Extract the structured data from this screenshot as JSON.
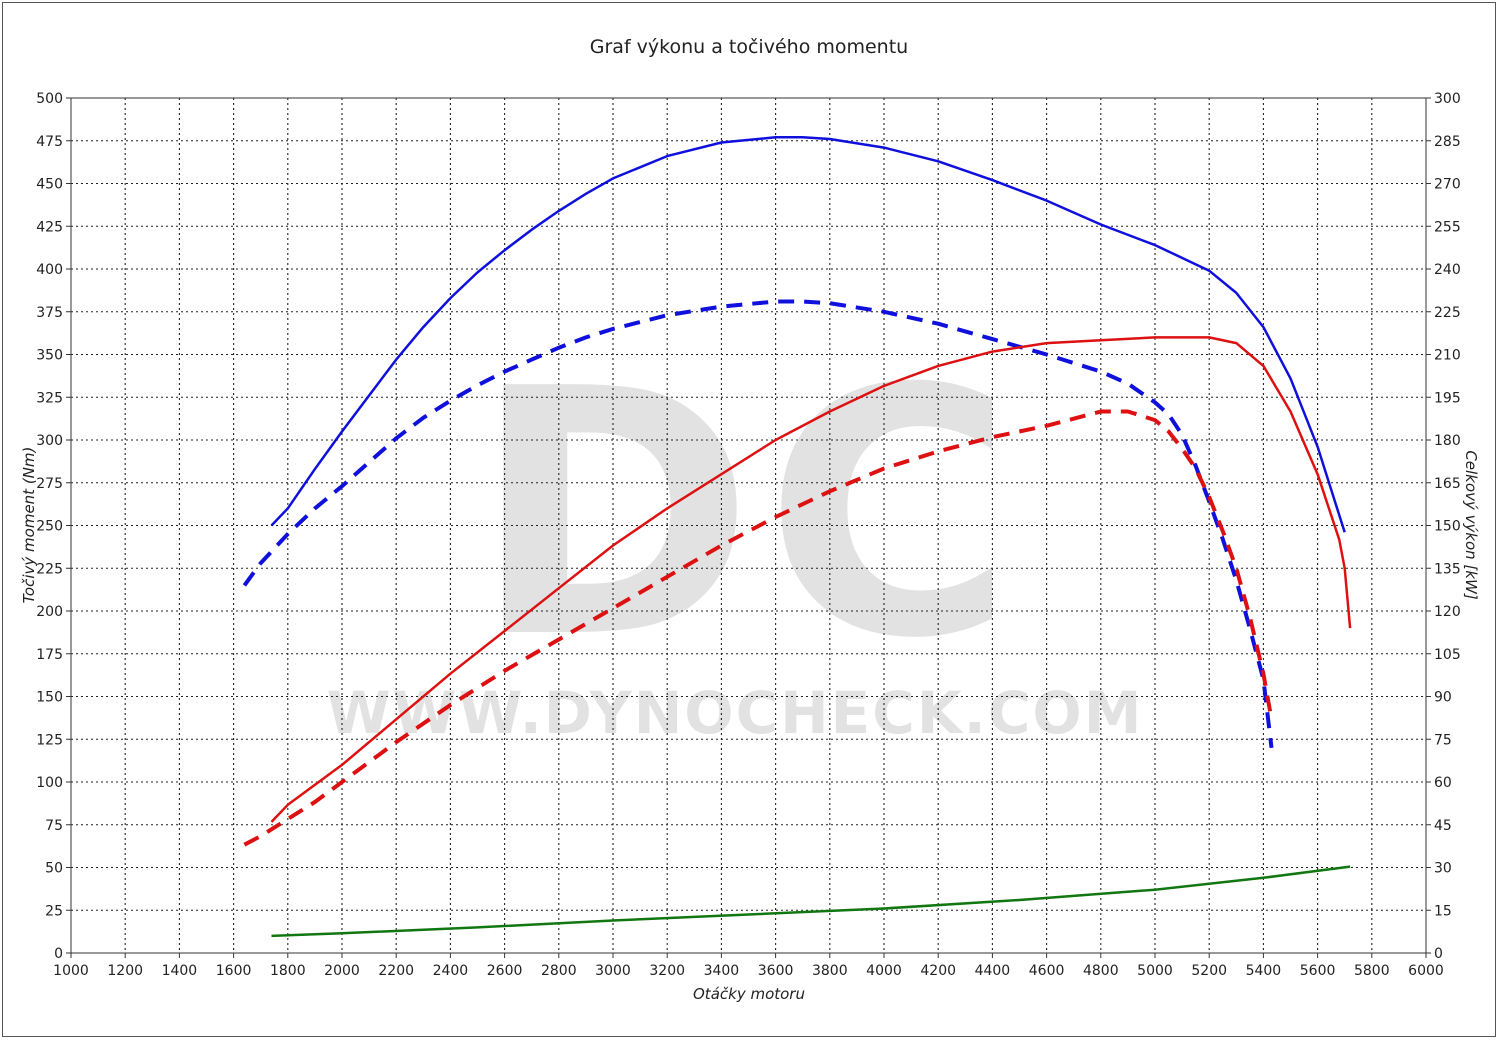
{
  "chart_data": {
    "type": "line",
    "title": "Graf výkonu a točivého momentu",
    "xlabel": "Otáčky motoru",
    "ylabel_left": "Točivý moment (Nm)",
    "ylabel_right": "Celkový výkon [kW]",
    "xlim": [
      1000,
      6000
    ],
    "ylim_left": [
      0,
      500
    ],
    "ylim_right": [
      0,
      300
    ],
    "x_ticks": [
      1000,
      1200,
      1400,
      1600,
      1800,
      2000,
      2200,
      2400,
      2600,
      2800,
      3000,
      3200,
      3400,
      3600,
      3800,
      4000,
      4200,
      4400,
      4600,
      4800,
      5000,
      5200,
      5400,
      5600,
      5800,
      6000
    ],
    "y_left_ticks": [
      0,
      25,
      50,
      75,
      100,
      125,
      150,
      175,
      200,
      225,
      250,
      275,
      300,
      325,
      350,
      375,
      400,
      425,
      450,
      475,
      500
    ],
    "y_right_ticks": [
      0,
      15,
      30,
      45,
      60,
      75,
      90,
      105,
      120,
      135,
      150,
      165,
      180,
      195,
      210,
      225,
      240,
      255,
      270,
      285,
      300
    ],
    "grid": true,
    "watermark": {
      "logo": "DC",
      "url": "WWW.DYNOCHECK.COM"
    },
    "series": [
      {
        "axis": "left",
        "color": "#1010dd",
        "dash": false,
        "x": [
          1740,
          1800,
          1900,
          2000,
          2100,
          2200,
          2300,
          2400,
          2500,
          2600,
          2700,
          2800,
          2900,
          3000,
          3200,
          3400,
          3600,
          3700,
          3800,
          4000,
          4200,
          4400,
          4600,
          4800,
          5000,
          5200,
          5300,
          5400,
          5500,
          5600,
          5700
        ],
        "values": [
          250,
          260,
          283,
          305,
          326,
          347,
          366,
          383,
          398,
          411,
          423,
          434,
          444,
          453,
          466,
          474,
          477,
          477,
          476,
          471,
          463,
          452,
          440,
          426,
          414,
          399,
          386,
          366,
          336,
          296,
          246
        ]
      },
      {
        "axis": "left",
        "color": "#1010dd",
        "dash": true,
        "x": [
          1640,
          1700,
          1800,
          1900,
          2000,
          2100,
          2200,
          2300,
          2400,
          2500,
          2600,
          2700,
          2800,
          2900,
          3000,
          3200,
          3400,
          3600,
          3700,
          3800,
          4000,
          4200,
          4400,
          4600,
          4800,
          4900,
          5000,
          5050,
          5100,
          5150,
          5200,
          5250,
          5300,
          5350,
          5400,
          5430
        ],
        "values": [
          215,
          228,
          245,
          260,
          273,
          287,
          301,
          313,
          323,
          332,
          340,
          347,
          354,
          360,
          365,
          373,
          378,
          381,
          381,
          380,
          375,
          368,
          359,
          350,
          340,
          333,
          322,
          315,
          303,
          285,
          264,
          242,
          218,
          190,
          160,
          120
        ]
      },
      {
        "axis": "right",
        "color": "#dd1111",
        "dash": false,
        "x": [
          1740,
          1800,
          2000,
          2200,
          2400,
          2600,
          2800,
          3000,
          3200,
          3400,
          3600,
          3800,
          4000,
          4200,
          4400,
          4600,
          4800,
          5000,
          5100,
          5200,
          5300,
          5400,
          5500,
          5600,
          5680,
          5700,
          5720
        ],
        "values": [
          46,
          52,
          66,
          82,
          98,
          113,
          128,
          143,
          156,
          168,
          180,
          190,
          199,
          206,
          211,
          214,
          215,
          216,
          216,
          216,
          214,
          206,
          190,
          168,
          145,
          135,
          114
        ]
      },
      {
        "axis": "right",
        "color": "#dd1111",
        "dash": true,
        "x": [
          1640,
          1700,
          1800,
          1900,
          2000,
          2200,
          2400,
          2600,
          2800,
          3000,
          3200,
          3400,
          3600,
          3800,
          4000,
          4200,
          4400,
          4600,
          4800,
          4900,
          5000,
          5050,
          5100,
          5150,
          5200,
          5250,
          5300,
          5350,
          5400,
          5430
        ],
        "values": [
          38,
          41,
          47,
          53,
          60,
          74,
          87,
          99,
          110,
          121,
          132,
          143,
          153,
          162,
          170,
          176,
          181,
          185,
          190,
          190,
          187,
          183,
          177,
          170,
          160,
          148,
          135,
          118,
          98,
          82
        ]
      },
      {
        "axis": "left",
        "color": "#117711",
        "dash": false,
        "x": [
          1740,
          2000,
          2500,
          3000,
          3500,
          4000,
          4500,
          5000,
          5400,
          5720
        ],
        "values": [
          10,
          11.5,
          15,
          19,
          22.5,
          26,
          31,
          37,
          44,
          50.5
        ]
      }
    ]
  }
}
